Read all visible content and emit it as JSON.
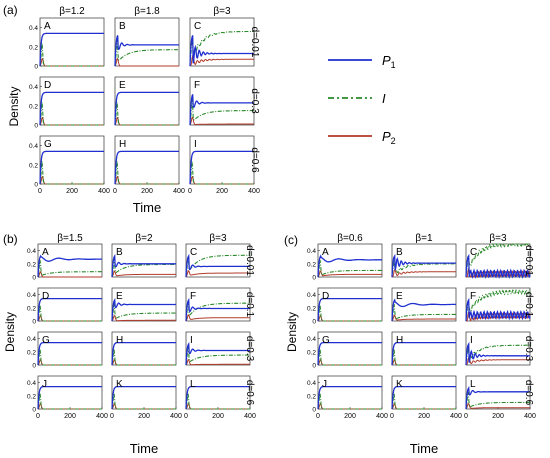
{
  "chart_data": [
    {
      "type": "line",
      "panel_label": "(a)",
      "xlabel": "Time",
      "ylabel": "Density",
      "xlim": [
        0,
        400
      ],
      "ylim": [
        0,
        0.5
      ],
      "xticks": [
        "0",
        "200",
        "400"
      ],
      "yticks": [
        "0",
        "0.2",
        "0.4"
      ],
      "columns": [
        "β=1.2",
        "β=1.8",
        "β=3"
      ],
      "rows": [
        "d=0.01",
        "d=0.3",
        "d=0.6"
      ],
      "subplots": [
        {
          "label": "A",
          "P1": 0.34,
          "I": 0.0,
          "P2": 0.0,
          "osc": "none"
        },
        {
          "label": "B",
          "P1": 0.22,
          "I": 0.17,
          "P2": 0.0,
          "osc": "small"
        },
        {
          "label": "C",
          "P1": 0.13,
          "I": 0.36,
          "P2": 0.07,
          "osc": "large"
        },
        {
          "label": "D",
          "P1": 0.34,
          "I": 0.0,
          "P2": 0.0,
          "osc": "none"
        },
        {
          "label": "E",
          "P1": 0.34,
          "I": 0.0,
          "P2": 0.0,
          "osc": "none"
        },
        {
          "label": "F",
          "P1": 0.23,
          "I": 0.15,
          "P2": 0.01,
          "osc": "small"
        },
        {
          "label": "G",
          "P1": 0.34,
          "I": 0.0,
          "P2": 0.0,
          "osc": "none"
        },
        {
          "label": "H",
          "P1": 0.34,
          "I": 0.0,
          "P2": 0.0,
          "osc": "none"
        },
        {
          "label": "I",
          "P1": 0.34,
          "I": 0.0,
          "P2": 0.0,
          "osc": "none"
        }
      ]
    },
    {
      "type": "line",
      "panel_label": "(b)",
      "xlabel": "Time",
      "ylabel": "Density",
      "xlim": [
        0,
        400
      ],
      "ylim": [
        0,
        0.5
      ],
      "xticks": [
        "0",
        "200",
        "400"
      ],
      "yticks": [
        "0",
        "0.2",
        "0.4"
      ],
      "columns": [
        "β=1.5",
        "β=2",
        "β=3"
      ],
      "rows": [
        "d=0.01",
        "d=0.1",
        "d=0.3",
        "d=0.6"
      ],
      "subplots": [
        {
          "label": "A",
          "P1": 0.27,
          "I": 0.08,
          "P2": 0.0,
          "osc": "damped"
        },
        {
          "label": "B",
          "P1": 0.2,
          "I": 0.19,
          "P2": 0.04,
          "osc": "small"
        },
        {
          "label": "C",
          "P1": 0.16,
          "I": 0.33,
          "P2": 0.06,
          "osc": "small"
        },
        {
          "label": "D",
          "P1": 0.34,
          "I": 0.0,
          "P2": 0.0,
          "osc": "none"
        },
        {
          "label": "E",
          "P1": 0.25,
          "I": 0.12,
          "P2": 0.01,
          "osc": "small"
        },
        {
          "label": "F",
          "P1": 0.19,
          "I": 0.27,
          "P2": 0.05,
          "osc": "small"
        },
        {
          "label": "G",
          "P1": 0.34,
          "I": 0.0,
          "P2": 0.0,
          "osc": "none"
        },
        {
          "label": "H",
          "P1": 0.34,
          "I": 0.0,
          "P2": 0.0,
          "osc": "none"
        },
        {
          "label": "I",
          "P1": 0.22,
          "I": 0.15,
          "P2": 0.01,
          "osc": "small"
        },
        {
          "label": "J",
          "P1": 0.34,
          "I": 0.0,
          "P2": 0.0,
          "osc": "none"
        },
        {
          "label": "K",
          "P1": 0.34,
          "I": 0.0,
          "P2": 0.0,
          "osc": "none"
        },
        {
          "label": "L",
          "P1": 0.34,
          "I": 0.0,
          "P2": 0.0,
          "osc": "none"
        }
      ]
    },
    {
      "type": "line",
      "panel_label": "(c)",
      "xlabel": "Time",
      "ylabel": "Density",
      "xlim": [
        0,
        400
      ],
      "ylim": [
        0,
        0.5
      ],
      "xticks": [
        "0",
        "200",
        "400"
      ],
      "yticks": [
        "0",
        "0.2",
        "0.4"
      ],
      "columns": [
        "β=0.6",
        "β=1",
        "β=3"
      ],
      "rows": [
        "d=0.01",
        "d=0.1",
        "d=0.3",
        "d=0.6"
      ],
      "subplots": [
        {
          "label": "A",
          "P1": 0.26,
          "I": 0.1,
          "P2": 0.04,
          "osc": "damped"
        },
        {
          "label": "B",
          "P1": 0.21,
          "I": 0.2,
          "P2": 0.08,
          "osc": "large"
        },
        {
          "label": "C",
          "P1": 0.05,
          "I": 0.5,
          "P2": 0.05,
          "osc": "sustained"
        },
        {
          "label": "D",
          "P1": 0.34,
          "I": 0.0,
          "P2": 0.0,
          "osc": "none"
        },
        {
          "label": "E",
          "P1": 0.25,
          "I": 0.1,
          "P2": 0.03,
          "osc": "damped"
        },
        {
          "label": "F",
          "P1": 0.09,
          "I": 0.44,
          "P2": 0.08,
          "osc": "sustained"
        },
        {
          "label": "G",
          "P1": 0.34,
          "I": 0.0,
          "P2": 0.0,
          "osc": "none"
        },
        {
          "label": "H",
          "P1": 0.34,
          "I": 0.0,
          "P2": 0.0,
          "osc": "none"
        },
        {
          "label": "I",
          "P1": 0.14,
          "I": 0.3,
          "P2": 0.08,
          "osc": "large"
        },
        {
          "label": "J",
          "P1": 0.34,
          "I": 0.0,
          "P2": 0.0,
          "osc": "none"
        },
        {
          "label": "K",
          "P1": 0.34,
          "I": 0.0,
          "P2": 0.0,
          "osc": "none"
        },
        {
          "label": "L",
          "P1": 0.26,
          "I": 0.1,
          "P2": 0.02,
          "osc": "small"
        }
      ]
    }
  ],
  "legend": [
    {
      "name": "P1",
      "text": "P",
      "sub": "1",
      "color": "#1f2fd0",
      "style": "solid"
    },
    {
      "name": "I",
      "text": "I",
      "sub": "",
      "color": "#2a8a2a",
      "style": "dashdot"
    },
    {
      "name": "P2",
      "text": "P",
      "sub": "2",
      "color": "#b23a2a",
      "style": "solid"
    }
  ],
  "colors": {
    "P1": "#1f2fd0",
    "I": "#2a8a2a",
    "P2": "#b23a2a",
    "axis": "#333333"
  }
}
